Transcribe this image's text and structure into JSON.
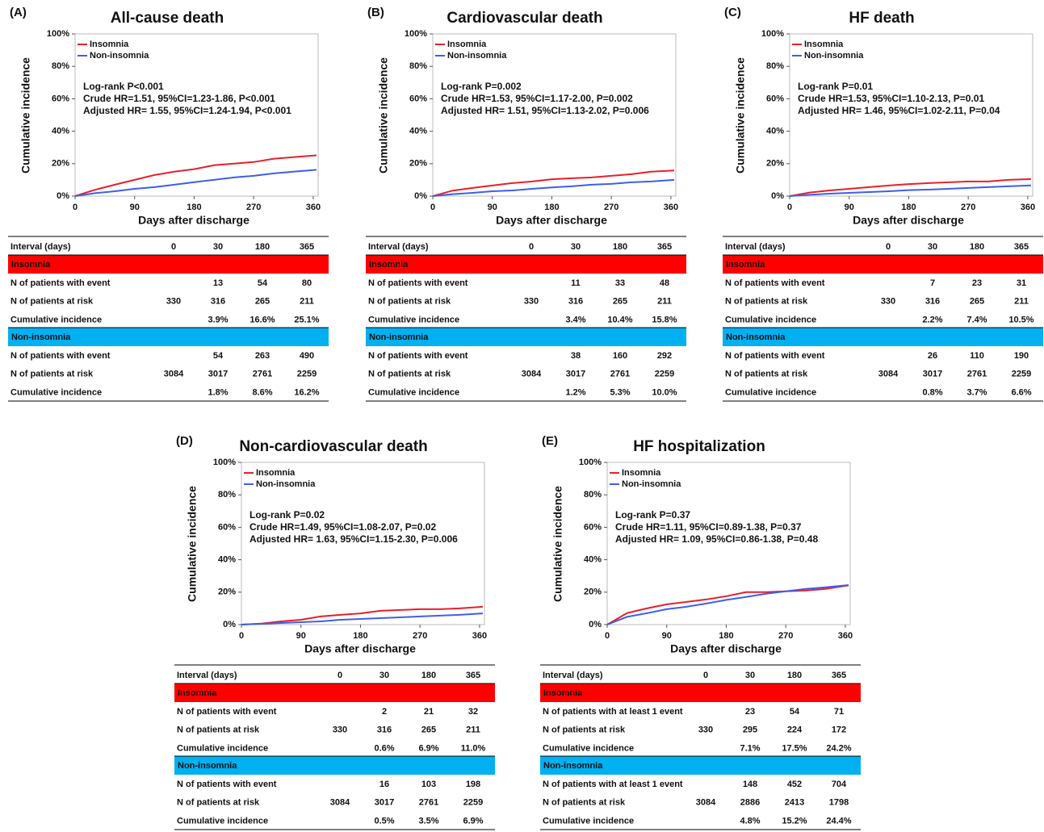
{
  "chart_data": [
    {
      "type": "line",
      "panel_label": "(A)",
      "title": "All-cause death",
      "x_label": "Days after discharge",
      "y_label": "Cumulative incidence",
      "xlim": [
        0,
        365
      ],
      "xticks": [
        0,
        90,
        180,
        270,
        360
      ],
      "ylim": [
        0,
        100
      ],
      "yticks": [
        {
          "value": 0,
          "label": "0%"
        },
        {
          "value": 20,
          "label": "20%"
        },
        {
          "value": 40,
          "label": "40%"
        },
        {
          "value": 60,
          "label": "60%"
        },
        {
          "value": 80,
          "label": "80%"
        },
        {
          "value": 100,
          "label": "100%"
        }
      ],
      "legend": "upper left",
      "x": [
        0,
        30,
        60,
        90,
        120,
        150,
        180,
        210,
        240,
        270,
        300,
        330,
        365
      ],
      "series": [
        {
          "name": "Insomnia",
          "color": "#e8202a",
          "values": [
            0,
            3.9,
            7,
            10,
            13,
            15,
            16.6,
            19,
            20,
            21,
            23,
            24,
            25.1
          ]
        },
        {
          "name": "Non-insomnia",
          "color": "#3f5fe8",
          "values": [
            0,
            1.8,
            3,
            4.5,
            5.5,
            7,
            8.6,
            10,
            11.5,
            12.5,
            14,
            15,
            16.2
          ]
        }
      ],
      "annotations": [
        "Log-rank P<0.001",
        "Crude HR=1.51, 95%CI=1.23-1.86, P<0.001",
        "Adjusted HR= 1.55, 95%CI=1.24-1.94, P<0.001"
      ],
      "table": {
        "header": "Interval (days)",
        "columns": [
          0,
          30,
          180,
          365
        ],
        "groups": [
          {
            "name": "Insomnia",
            "color": "#ff0000",
            "rows": [
              {
                "label": "N of patients with event",
                "cells": [
                  null,
                  13,
                  54,
                  80
                ]
              },
              {
                "label": "N of patients at risk",
                "cells": [
                  330,
                  316,
                  265,
                  211
                ]
              },
              {
                "label": "Cumulative incidence",
                "cells": [
                  null,
                  "3.9%",
                  "16.6%",
                  "25.1%"
                ]
              }
            ]
          },
          {
            "name": "Non-insomnia",
            "color": "#00b0f0",
            "rows": [
              {
                "label": "N of patients with event",
                "cells": [
                  null,
                  54,
                  263,
                  490
                ]
              },
              {
                "label": "N of patients at risk",
                "cells": [
                  3084,
                  3017,
                  2761,
                  2259
                ]
              },
              {
                "label": "Cumulative incidence",
                "cells": [
                  null,
                  "1.8%",
                  "8.6%",
                  "16.2%"
                ]
              }
            ]
          }
        ]
      }
    },
    {
      "type": "line",
      "panel_label": "(B)",
      "title": "Cardiovascular death",
      "x_label": "Days after discharge",
      "y_label": "Cumulative incidence",
      "xlim": [
        0,
        365
      ],
      "xticks": [
        0,
        90,
        180,
        270,
        360
      ],
      "ylim": [
        0,
        100
      ],
      "yticks": [
        {
          "value": 0,
          "label": "0%"
        },
        {
          "value": 20,
          "label": "20%"
        },
        {
          "value": 40,
          "label": "40%"
        },
        {
          "value": 60,
          "label": "60%"
        },
        {
          "value": 80,
          "label": "80%"
        },
        {
          "value": 100,
          "label": "100%"
        }
      ],
      "legend": "upper left",
      "x": [
        0,
        30,
        60,
        90,
        120,
        150,
        180,
        210,
        240,
        270,
        300,
        330,
        365
      ],
      "series": [
        {
          "name": "Insomnia",
          "color": "#e8202a",
          "values": [
            0,
            3.4,
            5,
            6.5,
            8,
            9,
            10.4,
            11,
            11.5,
            12.5,
            13.5,
            15,
            15.8
          ]
        },
        {
          "name": "Non-insomnia",
          "color": "#3f5fe8",
          "values": [
            0,
            1.2,
            2,
            3,
            3.5,
            4.5,
            5.3,
            6,
            7,
            7.5,
            8.5,
            9,
            10.0
          ]
        }
      ],
      "annotations": [
        "Log-rank P=0.002",
        "Crude HR=1.53, 95%CI=1.17-2.00, P=0.002",
        "Adjusted HR= 1.51, 95%CI=1.13-2.02, P=0.006"
      ],
      "table": {
        "header": "Interval (days)",
        "columns": [
          0,
          30,
          180,
          365
        ],
        "groups": [
          {
            "name": "Insomnia",
            "color": "#ff0000",
            "rows": [
              {
                "label": "N of patients with event",
                "cells": [
                  null,
                  11,
                  33,
                  48
                ]
              },
              {
                "label": "N of patients at risk",
                "cells": [
                  330,
                  316,
                  265,
                  211
                ]
              },
              {
                "label": "Cumulative incidence",
                "cells": [
                  null,
                  "3.4%",
                  "10.4%",
                  "15.8%"
                ]
              }
            ]
          },
          {
            "name": "Non-insomnia",
            "color": "#00b0f0",
            "rows": [
              {
                "label": "N of patients with event",
                "cells": [
                  null,
                  38,
                  160,
                  292
                ]
              },
              {
                "label": "N of patients at risk",
                "cells": [
                  3084,
                  3017,
                  2761,
                  2259
                ]
              },
              {
                "label": "Cumulative incidence",
                "cells": [
                  null,
                  "1.2%",
                  "5.3%",
                  "10.0%"
                ]
              }
            ]
          }
        ]
      }
    },
    {
      "type": "line",
      "panel_label": "(C)",
      "title": "HF death",
      "x_label": "Days after discharge",
      "y_label": "Cumulative incidence",
      "xlim": [
        0,
        365
      ],
      "xticks": [
        0,
        90,
        180,
        270,
        360
      ],
      "ylim": [
        0,
        100
      ],
      "yticks": [
        {
          "value": 0,
          "label": "0%"
        },
        {
          "value": 20,
          "label": "20%"
        },
        {
          "value": 40,
          "label": "40%"
        },
        {
          "value": 60,
          "label": "60%"
        },
        {
          "value": 80,
          "label": "80%"
        },
        {
          "value": 100,
          "label": "100%"
        }
      ],
      "legend": "upper left",
      "x": [
        0,
        30,
        60,
        90,
        120,
        150,
        180,
        210,
        240,
        270,
        300,
        330,
        365
      ],
      "series": [
        {
          "name": "Insomnia",
          "color": "#e8202a",
          "values": [
            0,
            2.2,
            3.5,
            4.5,
            5.5,
            6.5,
            7.4,
            8,
            8.5,
            9,
            9,
            10,
            10.5
          ]
        },
        {
          "name": "Non-insomnia",
          "color": "#3f5fe8",
          "values": [
            0,
            0.8,
            1.5,
            2,
            2.5,
            3,
            3.7,
            4,
            4.5,
            5,
            5.5,
            6,
            6.6
          ]
        }
      ],
      "annotations": [
        "Log-rank P=0.01",
        "Crude HR=1.53, 95%CI=1.10-2.13, P=0.01",
        "Adjusted HR= 1.46, 95%CI=1.02-2.11, P=0.04"
      ],
      "table": {
        "header": "Interval (days)",
        "columns": [
          0,
          30,
          180,
          365
        ],
        "groups": [
          {
            "name": "Insomnia",
            "color": "#ff0000",
            "rows": [
              {
                "label": "N of patients with event",
                "cells": [
                  null,
                  7,
                  23,
                  31
                ]
              },
              {
                "label": "N of patients at risk",
                "cells": [
                  330,
                  316,
                  265,
                  211
                ]
              },
              {
                "label": "Cumulative incidence",
                "cells": [
                  null,
                  "2.2%",
                  "7.4%",
                  "10.5%"
                ]
              }
            ]
          },
          {
            "name": "Non-insomnia",
            "color": "#00b0f0",
            "rows": [
              {
                "label": "N of patients with event",
                "cells": [
                  null,
                  26,
                  110,
                  190
                ]
              },
              {
                "label": "N of patients at risk",
                "cells": [
                  3084,
                  3017,
                  2761,
                  2259
                ]
              },
              {
                "label": "Cumulative incidence",
                "cells": [
                  null,
                  "0.8%",
                  "3.7%",
                  "6.6%"
                ]
              }
            ]
          }
        ]
      }
    },
    {
      "type": "line",
      "panel_label": "(D)",
      "title": "Non-cardiovascular death",
      "x_label": "Days after discharge",
      "y_label": "Cumulative incidence",
      "xlim": [
        0,
        365
      ],
      "xticks": [
        0,
        90,
        180,
        270,
        360
      ],
      "ylim": [
        0,
        100
      ],
      "yticks": [
        {
          "value": 0,
          "label": "0%"
        },
        {
          "value": 20,
          "label": "20%"
        },
        {
          "value": 40,
          "label": "40%"
        },
        {
          "value": 60,
          "label": "60%"
        },
        {
          "value": 80,
          "label": "80%"
        },
        {
          "value": 100,
          "label": "100%"
        }
      ],
      "legend": "upper left",
      "x": [
        0,
        30,
        60,
        90,
        120,
        150,
        180,
        210,
        240,
        270,
        300,
        330,
        365
      ],
      "series": [
        {
          "name": "Insomnia",
          "color": "#e8202a",
          "values": [
            0,
            0.6,
            2,
            3,
            5,
            6,
            6.9,
            8.5,
            9,
            9.5,
            9.5,
            10,
            11.0
          ]
        },
        {
          "name": "Non-insomnia",
          "color": "#3f5fe8",
          "values": [
            0,
            0.5,
            1,
            1.5,
            2,
            3,
            3.5,
            4,
            4.5,
            5,
            5.5,
            6,
            6.9
          ]
        }
      ],
      "annotations": [
        "Log-rank P=0.02",
        "Crude HR=1.49, 95%CI=1.08-2.07, P=0.02",
        "Adjusted HR= 1.63, 95%CI=1.15-2.30, P=0.006"
      ],
      "table": {
        "header": "Interval (days)",
        "columns": [
          0,
          30,
          180,
          365
        ],
        "groups": [
          {
            "name": "Insomnia",
            "color": "#ff0000",
            "rows": [
              {
                "label": "N of patients with event",
                "cells": [
                  null,
                  2,
                  21,
                  32
                ]
              },
              {
                "label": "N of patients at risk",
                "cells": [
                  330,
                  316,
                  265,
                  211
                ]
              },
              {
                "label": "Cumulative incidence",
                "cells": [
                  null,
                  "0.6%",
                  "6.9%",
                  "11.0%"
                ]
              }
            ]
          },
          {
            "name": "Non-insomnia",
            "color": "#00b0f0",
            "rows": [
              {
                "label": "N of patients with event",
                "cells": [
                  null,
                  16,
                  103,
                  198
                ]
              },
              {
                "label": "N of patients at risk",
                "cells": [
                  3084,
                  3017,
                  2761,
                  2259
                ]
              },
              {
                "label": "Cumulative incidence",
                "cells": [
                  null,
                  "0.5%",
                  "3.5%",
                  "6.9%"
                ]
              }
            ]
          }
        ]
      }
    },
    {
      "type": "line",
      "panel_label": "(E)",
      "title": "HF hospitalization",
      "x_label": "Days after discharge",
      "y_label": "Cumulative incidence",
      "xlim": [
        0,
        365
      ],
      "xticks": [
        0,
        90,
        180,
        270,
        360
      ],
      "ylim": [
        0,
        100
      ],
      "yticks": [
        {
          "value": 0,
          "label": "0%"
        },
        {
          "value": 20,
          "label": "20%"
        },
        {
          "value": 40,
          "label": "40%"
        },
        {
          "value": 60,
          "label": "60%"
        },
        {
          "value": 80,
          "label": "80%"
        },
        {
          "value": 100,
          "label": "100%"
        }
      ],
      "legend": "upper left",
      "x": [
        0,
        30,
        60,
        90,
        120,
        150,
        180,
        210,
        240,
        270,
        300,
        330,
        365
      ],
      "series": [
        {
          "name": "Insomnia",
          "color": "#e8202a",
          "values": [
            0,
            7.1,
            10,
            12.5,
            14,
            15.5,
            17.5,
            20,
            20,
            20.5,
            21,
            22,
            24.2
          ]
        },
        {
          "name": "Non-insomnia",
          "color": "#3f5fe8",
          "values": [
            0,
            4.8,
            7,
            9.5,
            11,
            13,
            15.2,
            17,
            19,
            20.5,
            22,
            23,
            24.4
          ]
        }
      ],
      "annotations": [
        "Log-rank P=0.37",
        "Crude HR=1.11, 95%CI=0.89-1.38, P=0.37",
        "Adjusted HR= 1.09, 95%CI=0.86-1.38, P=0.48"
      ],
      "table": {
        "header": "Interval (days)",
        "columns": [
          0,
          30,
          180,
          365
        ],
        "groups": [
          {
            "name": "Insomnia",
            "color": "#ff0000",
            "rows": [
              {
                "label": "N of patients with at least 1 event",
                "cells": [
                  null,
                  23,
                  54,
                  71
                ]
              },
              {
                "label": "N of patients at risk",
                "cells": [
                  330,
                  295,
                  224,
                  172
                ]
              },
              {
                "label": "Cumulative incidence",
                "cells": [
                  null,
                  "7.1%",
                  "17.5%",
                  "24.2%"
                ]
              }
            ]
          },
          {
            "name": "Non-insomnia",
            "color": "#00b0f0",
            "rows": [
              {
                "label": "N of patients with at least 1 event",
                "cells": [
                  null,
                  148,
                  452,
                  704
                ]
              },
              {
                "label": "N of patients at risk",
                "cells": [
                  3084,
                  2886,
                  2413,
                  1798
                ]
              },
              {
                "label": "Cumulative incidence",
                "cells": [
                  null,
                  "4.8%",
                  "15.2%",
                  "24.4%"
                ]
              }
            ]
          }
        ]
      }
    }
  ]
}
